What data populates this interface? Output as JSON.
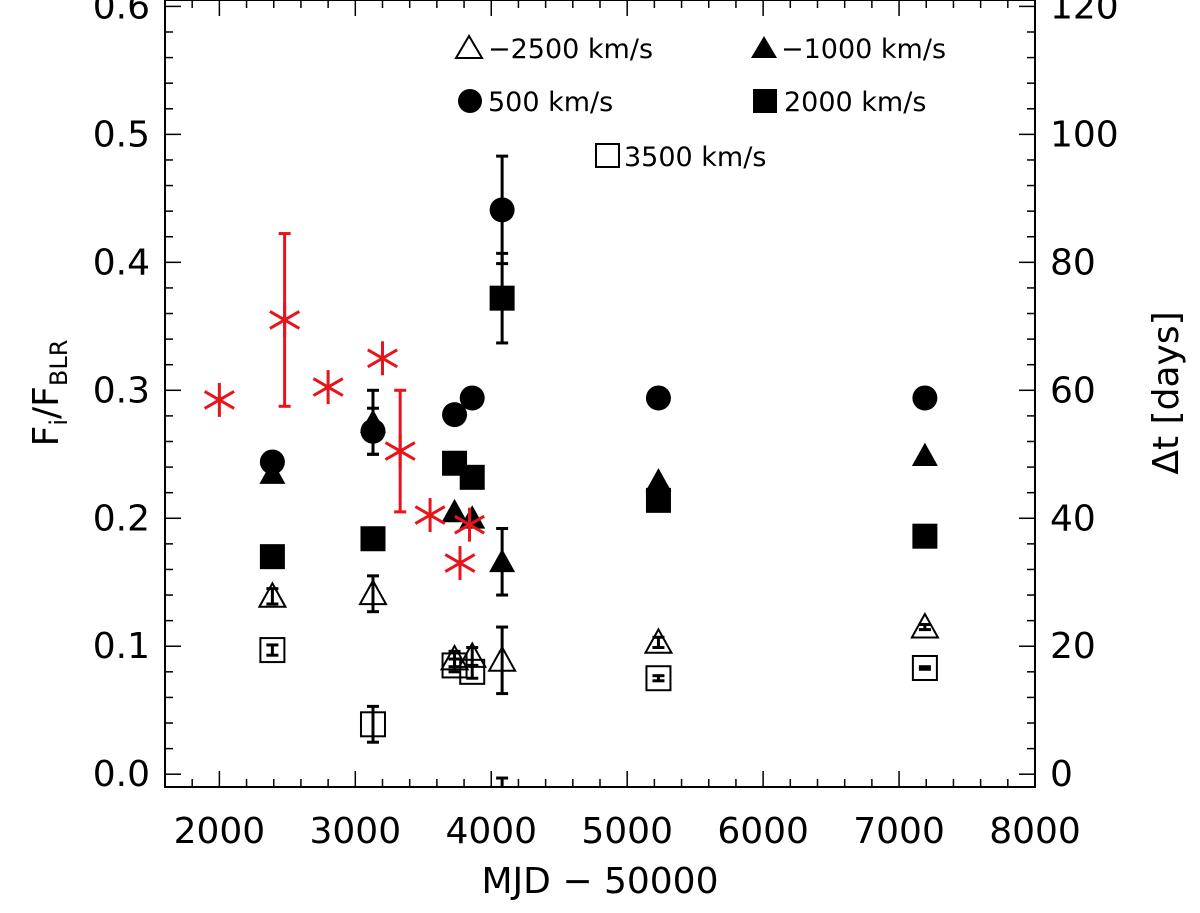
{
  "chart_data": {
    "type": "scatter",
    "xlabel": "MJD − 50000",
    "ylabel_left": {
      "main": "F",
      "sub_i": "i",
      "slash": "/F",
      "sub_blr": "BLR"
    },
    "ylabel_right": "Δt  [days]",
    "xlim": [
      1600,
      8000
    ],
    "ylim_left": [
      -0.01,
      0.605
    ],
    "ylim_right": [
      -2,
      121
    ],
    "x_ticks": [
      2000,
      3000,
      4000,
      5000,
      6000,
      7000,
      8000
    ],
    "x_tick_labels": [
      "2000",
      "3000",
      "4000",
      "5000",
      "6000",
      "7000",
      "8000"
    ],
    "y_left_ticks": [
      0.0,
      0.1,
      0.2,
      0.3,
      0.4,
      0.5,
      0.6
    ],
    "y_left_tick_labels": [
      "0.0",
      "0.1",
      "0.2",
      "0.3",
      "0.4",
      "0.5",
      "0.6"
    ],
    "y_right_ticks": [
      0,
      20,
      40,
      60,
      80,
      100,
      120
    ],
    "y_right_tick_labels": [
      "0",
      "20",
      "40",
      "60",
      "80",
      "100",
      "120"
    ],
    "grid": false,
    "legend_position": "top-right",
    "series": [
      {
        "name": "−2500 km/s",
        "marker": "triangle-open",
        "axis": "left",
        "color": "#000000",
        "points": [
          {
            "x": 2390,
            "y": 0.139,
            "err": 0.006
          },
          {
            "x": 3130,
            "y": 0.141,
            "err": 0.014
          },
          {
            "x": 3730,
            "y": 0.09,
            "err": 0.006
          },
          {
            "x": 3860,
            "y": 0.092,
            "err": 0.007
          },
          {
            "x": 4080,
            "y": 0.089,
            "err": 0.026
          },
          {
            "x": 5230,
            "y": 0.103,
            "err": 0.004
          },
          {
            "x": 7190,
            "y": 0.115,
            "err": 0.002
          }
        ]
      },
      {
        "name": "−1000 km/s",
        "marker": "triangle-filled",
        "axis": "left",
        "color": "#000000",
        "points": [
          {
            "x": 2390,
            "y": 0.235,
            "err": 0
          },
          {
            "x": 3130,
            "y": 0.275,
            "err": 0.025
          },
          {
            "x": 3730,
            "y": 0.205,
            "err": 0
          },
          {
            "x": 3860,
            "y": 0.2,
            "err": 0
          },
          {
            "x": 4080,
            "y": 0.166,
            "err": 0.026
          },
          {
            "x": 5230,
            "y": 0.229,
            "err": 0
          },
          {
            "x": 7190,
            "y": 0.249,
            "err": 0
          }
        ]
      },
      {
        "name": "500 km/s",
        "marker": "circle-filled",
        "axis": "left",
        "color": "#000000",
        "points": [
          {
            "x": 2390,
            "y": 0.244,
            "err": 0
          },
          {
            "x": 3130,
            "y": 0.268,
            "err": 0.018
          },
          {
            "x": 3730,
            "y": 0.281,
            "err": 0
          },
          {
            "x": 3860,
            "y": 0.294,
            "err": 0
          },
          {
            "x": 4080,
            "y": 0.441,
            "err": 0.042
          },
          {
            "x": 5230,
            "y": 0.294,
            "err": 0
          },
          {
            "x": 7190,
            "y": 0.294,
            "err": 0
          }
        ]
      },
      {
        "name": "2000 km/s",
        "marker": "square-filled",
        "axis": "left",
        "color": "#000000",
        "points": [
          {
            "x": 2390,
            "y": 0.17,
            "err": 0
          },
          {
            "x": 3130,
            "y": 0.184,
            "err": 0.008
          },
          {
            "x": 3730,
            "y": 0.243,
            "err": 0
          },
          {
            "x": 3860,
            "y": 0.232,
            "err": 0
          },
          {
            "x": 4080,
            "y": 0.372,
            "err": 0.035
          },
          {
            "x": 5230,
            "y": 0.214,
            "err": 0
          },
          {
            "x": 7190,
            "y": 0.186,
            "err": 0
          }
        ]
      },
      {
        "name": "3500 km/s",
        "marker": "square-open",
        "axis": "left",
        "color": "#000000",
        "points": [
          {
            "x": 2390,
            "y": 0.097,
            "err": 0.004
          },
          {
            "x": 3130,
            "y": 0.039,
            "err": 0.014
          },
          {
            "x": 3730,
            "y": 0.085,
            "err": 0.005
          },
          {
            "x": 3860,
            "y": 0.08,
            "err": 0.005
          },
          {
            "x": 5230,
            "y": 0.075,
            "err": 0.002
          },
          {
            "x": 7190,
            "y": 0.083,
            "err": 0.001
          }
        ]
      },
      {
        "marker": "asterisk",
        "axis": "right",
        "color": "#e8141c",
        "points": [
          {
            "x": 2000,
            "y": 58.5,
            "err": 0
          },
          {
            "x": 2480,
            "y": 71.0,
            "err": 13.5
          },
          {
            "x": 2800,
            "y": 60.5,
            "err": 0
          },
          {
            "x": 3200,
            "y": 65.0,
            "err": 0
          },
          {
            "x": 3330,
            "y": 50.5,
            "err": 9.5
          },
          {
            "x": 3550,
            "y": 40.5,
            "err": 0
          },
          {
            "x": 3770,
            "y": 33.0,
            "err": 0
          },
          {
            "x": 3840,
            "y": 39.0,
            "err": 0
          }
        ]
      }
    ],
    "stray_error_bars": [
      {
        "x": 4080,
        "axis": "left",
        "low": -0.02,
        "high": -0.003
      }
    ]
  }
}
